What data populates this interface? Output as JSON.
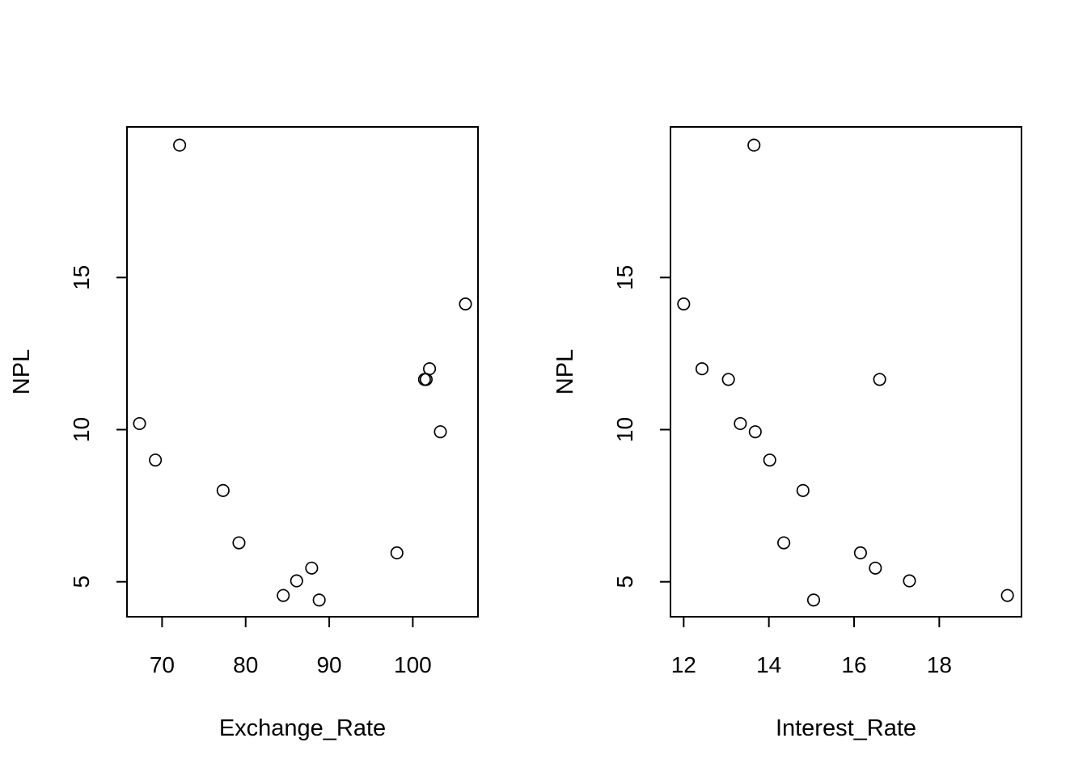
{
  "chart_data": [
    {
      "type": "scatter",
      "xlabel": "Exchange_Rate",
      "ylabel": "NPL",
      "xlim": [
        65.8,
        107.8
      ],
      "ylim": [
        3.85,
        19.95
      ],
      "xticks": [
        70,
        80,
        90,
        100
      ],
      "yticks": [
        5,
        10,
        15
      ],
      "grid": false,
      "x": [
        72.1,
        67.3,
        69.2,
        77.3,
        79.2,
        84.5,
        86.1,
        87.9,
        88.8,
        98.1,
        101.4,
        101.6,
        102.0,
        103.3,
        106.3
      ],
      "y": [
        19.35,
        10.2,
        9.0,
        8.0,
        6.28,
        4.55,
        5.03,
        5.45,
        4.4,
        5.95,
        11.65,
        11.65,
        12.0,
        9.93,
        14.13
      ]
    },
    {
      "type": "scatter",
      "xlabel": "Interest_Rate",
      "ylabel": "NPL",
      "xlim": [
        11.69,
        19.93
      ],
      "ylim": [
        3.85,
        19.95
      ],
      "xticks": [
        12,
        14,
        16,
        18
      ],
      "yticks": [
        5,
        10,
        15
      ],
      "grid": false,
      "x": [
        13.65,
        12.0,
        12.43,
        13.05,
        13.33,
        13.68,
        14.02,
        14.8,
        14.35,
        16.15,
        16.6,
        16.5,
        17.3,
        15.05,
        19.6
      ],
      "y": [
        19.35,
        14.13,
        12.0,
        11.65,
        10.2,
        9.93,
        9.0,
        8.0,
        6.28,
        5.95,
        11.65,
        5.45,
        5.03,
        4.4,
        4.55
      ]
    }
  ]
}
